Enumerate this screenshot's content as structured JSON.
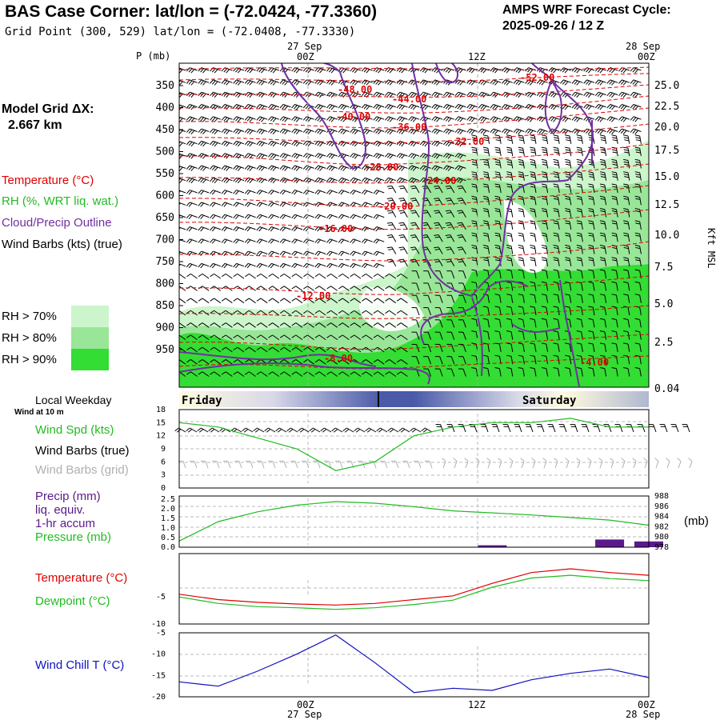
{
  "header": {
    "title": "BAS Case Corner:  lat/lon = (-72.0424, -77.3360)",
    "grid_point": "Grid Point (300, 529) lat/lon = (-72.0408, -77.3330)",
    "cycle_label": "AMPS WRF Forecast Cycle:",
    "cycle_value": "2025-09-26 / 12  Z"
  },
  "left_panel": {
    "model_grid_label": "Model Grid ΔX:",
    "model_grid_value": "2.667 km",
    "temperature": "Temperature (°C)",
    "rh": "RH (%, WRT liq. wat.)",
    "cloud": "Cloud/Precip Outline",
    "wind_barbs": "Wind Barbs (kts) (true)",
    "rh70": "RH > 70%",
    "rh80": "RH > 80%",
    "rh90": "RH > 90%"
  },
  "colors": {
    "temperature": "#e00000",
    "rh": "#22bb22",
    "cloud": "#7030a0",
    "rh70": "#ccf5cc",
    "rh80": "#99e699",
    "rh90": "#33dd33",
    "wind_chill": "#1010c0",
    "precip": "#5a1a8a",
    "grid_barbs": "#b0b0b0"
  },
  "time_axis": {
    "top_dates": [
      "27 Sep",
      "28 Sep"
    ],
    "ticks": [
      "00Z",
      "12Z",
      "00Z"
    ],
    "bottom_ticks": [
      "00Z",
      "12Z",
      "00Z"
    ],
    "bottom_dates": [
      "27 Sep",
      "28 Sep"
    ]
  },
  "weekday_bar": {
    "label": "Local Weekday",
    "days": [
      "Friday",
      "Saturday"
    ]
  },
  "wind_panel": {
    "sublabel": "Wind at 10 m",
    "wind_spd": "Wind Spd (kts)",
    "barbs_true": "Wind Barbs (true)",
    "barbs_grid": "Wind Barbs (grid)"
  },
  "precip_panel": {
    "precip": "Precip (mm)",
    "liq": "liq. equiv.",
    "accum": "1-hr accum",
    "pressure": "Pressure (mb)",
    "unit_right": "(mb)"
  },
  "temp_panel": {
    "temperature": "Temperature (°C)",
    "dewpoint": "Dewpoint (°C)"
  },
  "windchill_panel": {
    "label": "Wind Chill T (°C)"
  },
  "chart_data": [
    {
      "type": "heatmap",
      "description_key": "cross-section",
      "ylabel": "P (mb)",
      "right_label": "Kft MSL",
      "y_ticks": [
        "350",
        "400",
        "450",
        "500",
        "550",
        "600",
        "650",
        "700",
        "750",
        "800",
        "850",
        "900",
        "950"
      ],
      "right_ticks": [
        "25.0",
        "22.5",
        "20.0",
        "17.5",
        "15.0",
        "12.5",
        "10.0",
        "7.5",
        "5.0",
        "2.5",
        "0.04"
      ],
      "temperature_contour_labels": [
        "-48.00",
        "-44.00",
        "-40.00",
        "-36.00",
        "-32.00",
        "-28.00",
        "-24.00",
        "-20.00",
        "-16.00",
        "-12.00",
        "-8.00",
        "-4.00",
        "-52.00"
      ]
    },
    {
      "type": "line",
      "title": "Wind Spd (kts)",
      "y_ticks": [
        "18",
        "15",
        "12",
        "9",
        "6",
        "3",
        "0"
      ],
      "ylim": [
        0,
        18
      ],
      "x_hours": [
        0,
        3,
        6,
        9,
        12,
        15,
        18,
        21,
        24,
        27,
        30,
        33,
        36
      ],
      "series": [
        {
          "name": "Wind Spd (kts)",
          "values": [
            15,
            14,
            11.5,
            9,
            4,
            6,
            12,
            14,
            15,
            15,
            16,
            14,
            14
          ]
        }
      ]
    },
    {
      "type": "line",
      "y_ticks_left": [
        "2.5",
        "2.0",
        "1.5",
        "1.0",
        "0.5",
        "0.0"
      ],
      "y_ticks_right": [
        "988",
        "986",
        "984",
        "982",
        "980",
        "978"
      ],
      "ylim_left": [
        0,
        2.5
      ],
      "ylim_right": [
        978,
        988
      ],
      "x_hours": [
        0,
        3,
        6,
        9,
        12,
        15,
        18,
        21,
        24,
        27,
        30,
        33,
        36
      ],
      "series": [
        {
          "name": "Pressure (mb)",
          "values": [
            979.2,
            983,
            984.9,
            986.2,
            986.9,
            986.6,
            985.9,
            985.1,
            984.7,
            984.3,
            983.8,
            983.3,
            982.3
          ]
        },
        {
          "name": "Precip (mm)",
          "values": [
            0,
            0,
            0,
            0,
            0,
            0,
            0,
            0,
            0.1,
            0,
            0,
            0.4,
            0.3
          ]
        }
      ]
    },
    {
      "type": "line",
      "y_ticks": [
        "-5",
        "-10"
      ],
      "ylim": [
        -10,
        3
      ],
      "x_hours": [
        0,
        3,
        6,
        9,
        12,
        15,
        18,
        21,
        24,
        27,
        30,
        33,
        36
      ],
      "series": [
        {
          "name": "Temperature (°C)",
          "values": [
            -4.5,
            -5.5,
            -6,
            -6.3,
            -6.5,
            -6.2,
            -5.5,
            -4.8,
            -2.5,
            -0.5,
            0.2,
            -0.5,
            -1
          ]
        },
        {
          "name": "Dewpoint (°C)",
          "values": [
            -5,
            -6.2,
            -6.8,
            -7,
            -7.3,
            -7,
            -6.4,
            -5.6,
            -3.2,
            -1.5,
            -1,
            -1.6,
            -2
          ]
        }
      ]
    },
    {
      "type": "line",
      "y_ticks": [
        "-5",
        "-10",
        "-15",
        "-20"
      ],
      "ylim": [
        -20,
        -5
      ],
      "x_hours": [
        0,
        3,
        6,
        9,
        12,
        15,
        18,
        21,
        24,
        27,
        30,
        33,
        36
      ],
      "series": [
        {
          "name": "Wind Chill T (°C)",
          "values": [
            -16.5,
            -17.5,
            -14,
            -10,
            -5.5,
            -12,
            -19,
            -18,
            -18.5,
            -16,
            -14.5,
            -13.5,
            -15.5
          ]
        }
      ]
    }
  ]
}
